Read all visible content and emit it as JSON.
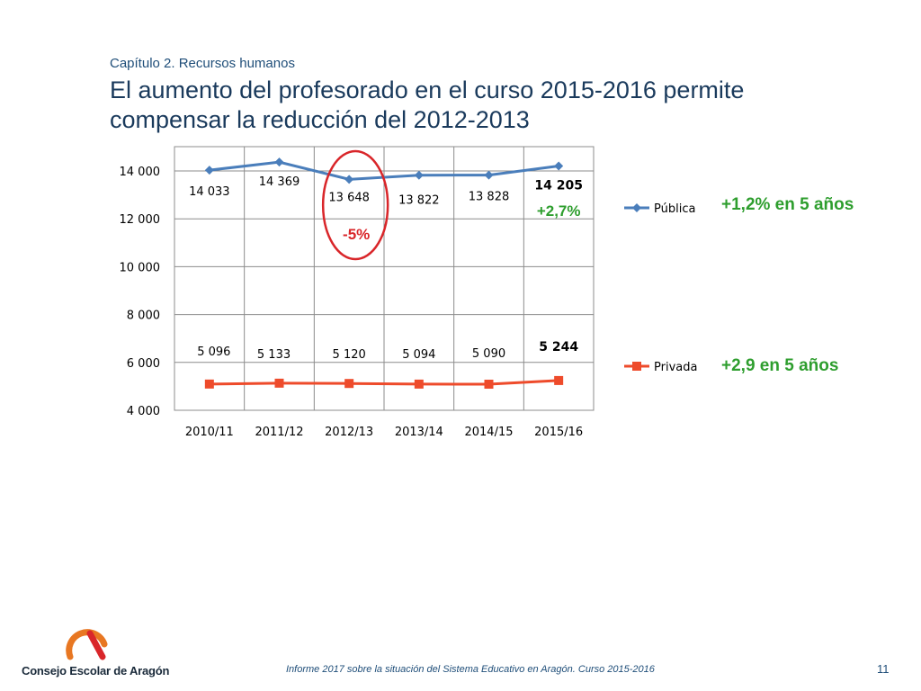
{
  "header": {
    "chapter": "Capítulo 2. Recursos humanos",
    "title": "El aumento del profesorado en el curso 2015-2016 permite compensar la reducción del 2012-2013"
  },
  "chart_data": {
    "type": "line",
    "categories": [
      "2010/11",
      "2011/12",
      "2012/13",
      "2013/14",
      "2014/15",
      "2015/16"
    ],
    "ylim": [
      4000,
      14000
    ],
    "y_ticks": [
      4000,
      6000,
      8000,
      10000,
      12000,
      14000
    ],
    "y_tick_labels": [
      "4 000",
      "6 000",
      "8 000",
      "10 000",
      "12 000",
      "14 000"
    ],
    "grid": true,
    "legend_position": "right",
    "series": [
      {
        "name": "Pública",
        "color": "#4a7ebb",
        "marker": "diamond",
        "values": [
          14033,
          14369,
          13648,
          13822,
          13828,
          14205
        ],
        "labels": [
          "14 033",
          "14 369",
          "13 648",
          "13 822",
          "13 828",
          "14 205"
        ]
      },
      {
        "name": "Privada",
        "color": "#ee4b2b",
        "marker": "square",
        "values": [
          5096,
          5133,
          5120,
          5094,
          5090,
          5244
        ],
        "labels": [
          "5 096",
          "5 133",
          "5 120",
          "5 094",
          "5 090",
          "5 244"
        ]
      }
    ],
    "annotations": {
      "circle_category": "2012/13",
      "circle_text": "-5%",
      "last_point_text": "+2,7%",
      "publica_summary": "+1,2% en 5 años",
      "privada_summary": "+2,9 en 5 años"
    },
    "colors": {
      "highlight": "#d9262a",
      "growth": "#2e9e2e"
    }
  },
  "footer": {
    "report": "Informe 2017 sobre la situación del Sistema Educativo en Aragón. Curso 2015-2016",
    "page": "11",
    "logo_text": "Consejo Escolar de Aragón"
  }
}
